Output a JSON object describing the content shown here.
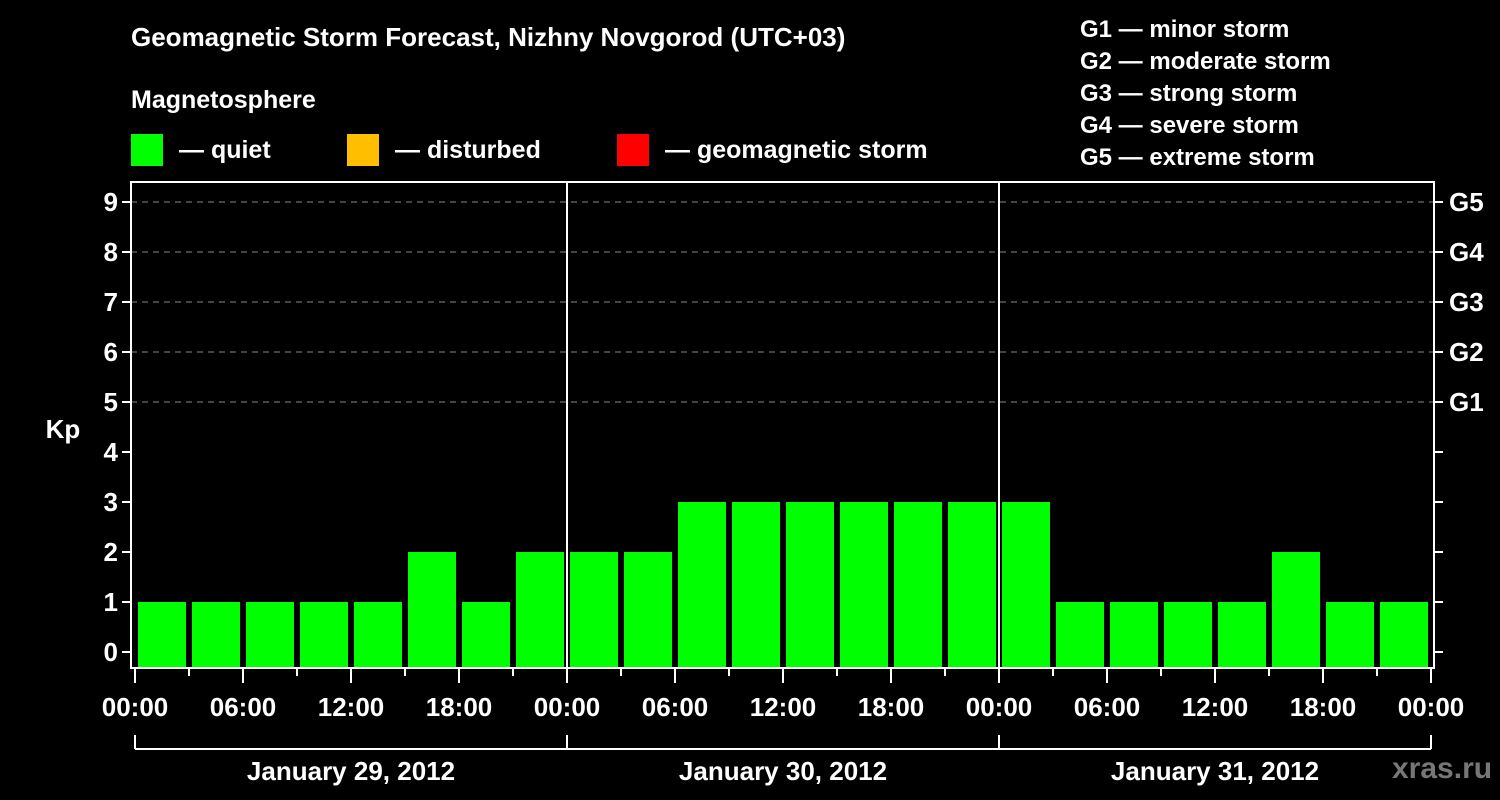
{
  "header": {
    "title": "Geomagnetic Storm Forecast, Nizhny Novgorod (UTC+03)",
    "subtitle": "Magnetosphere"
  },
  "legend": [
    {
      "label": "— quiet",
      "color": "#00ff00"
    },
    {
      "label": "— disturbed",
      "color": "#ffbf00"
    },
    {
      "label": "— geomagnetic storm",
      "color": "#ff0000"
    }
  ],
  "g_legend": [
    "G1 — minor storm",
    "G2 — moderate storm",
    "G3 — strong storm",
    "G4 — severe storm",
    "G5 — extreme storm"
  ],
  "watermark": "xras.ru",
  "chart_data": {
    "type": "bar",
    "title": "Geomagnetic Storm Forecast, Nizhny Novgorod (UTC+03)",
    "xlabel": "",
    "ylabel": "Kp",
    "ylim": [
      0,
      9
    ],
    "yticks": [
      0,
      1,
      2,
      3,
      4,
      5,
      6,
      7,
      8,
      9
    ],
    "right_axis_labels": {
      "5": "G1",
      "6": "G2",
      "7": "G3",
      "8": "G4",
      "9": "G5"
    },
    "grid": "dashed horizontal at Kp 5-9",
    "x_tick_labels": [
      "00:00",
      "06:00",
      "12:00",
      "18:00",
      "00:00",
      "06:00",
      "12:00",
      "18:00",
      "00:00",
      "06:00",
      "12:00",
      "18:00",
      "00:00"
    ],
    "day_labels": [
      "January 29, 2012",
      "January 30, 2012",
      "January 31, 2012"
    ],
    "categories": [
      "Jan 29 00-03",
      "Jan 29 03-06",
      "Jan 29 06-09",
      "Jan 29 09-12",
      "Jan 29 12-15",
      "Jan 29 15-18",
      "Jan 29 18-21",
      "Jan 29 21-24",
      "Jan 30 00-03",
      "Jan 30 03-06",
      "Jan 30 06-09",
      "Jan 30 09-12",
      "Jan 30 12-15",
      "Jan 30 15-18",
      "Jan 30 18-21",
      "Jan 30 21-24",
      "Jan 31 00-03",
      "Jan 31 03-06",
      "Jan 31 06-09",
      "Jan 31 09-12",
      "Jan 31 12-15",
      "Jan 31 15-18",
      "Jan 31 18-21",
      "Jan 31 21-24"
    ],
    "values": [
      1,
      1,
      1,
      1,
      1,
      2,
      1,
      2,
      2,
      2,
      3,
      3,
      3,
      3,
      3,
      3,
      3,
      1,
      1,
      1,
      1,
      2,
      1,
      1
    ],
    "bar_colors": "all #00ff00 (quiet)"
  }
}
